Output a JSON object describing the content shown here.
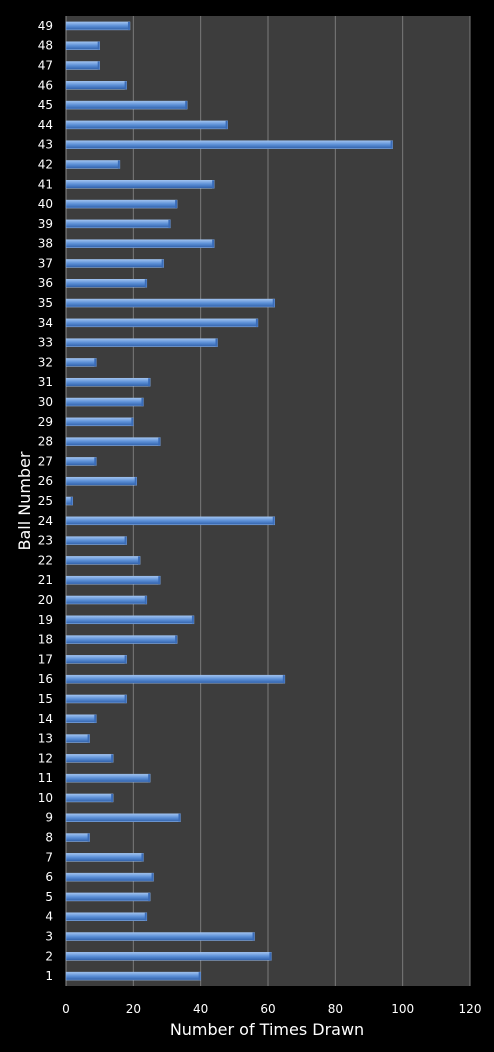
{
  "chart_data": {
    "type": "bar",
    "orientation": "horizontal",
    "xlabel": "Number of Times Drawn",
    "ylabel": "Ball Number",
    "xlim": [
      0,
      120
    ],
    "xticks": [
      "0",
      "20",
      "40",
      "60",
      "80",
      "100",
      "120"
    ],
    "grid": true,
    "legend": "none",
    "categories": [
      "1",
      "2",
      "3",
      "4",
      "5",
      "6",
      "7",
      "8",
      "9",
      "10",
      "11",
      "12",
      "13",
      "14",
      "15",
      "16",
      "17",
      "18",
      "19",
      "20",
      "21",
      "22",
      "23",
      "24",
      "25",
      "26",
      "27",
      "28",
      "29",
      "30",
      "31",
      "32",
      "33",
      "34",
      "35",
      "36",
      "37",
      "38",
      "39",
      "40",
      "41",
      "42",
      "43",
      "44",
      "45",
      "46",
      "47",
      "48",
      "49"
    ],
    "values": [
      40,
      61,
      56,
      24,
      25,
      26,
      23,
      7,
      34,
      14,
      25,
      14,
      7,
      9,
      18,
      65,
      18,
      33,
      38,
      24,
      28,
      22,
      18,
      62,
      2,
      21,
      9,
      28,
      20,
      23,
      25,
      9,
      45,
      57,
      62,
      24,
      29,
      44,
      31,
      33,
      44,
      16,
      97,
      48,
      36,
      18,
      10,
      10,
      19
    ],
    "colors": {
      "bar": "#5b8fd6",
      "plot_bg": "#3d3d3d",
      "grid": "#7a7a7a",
      "page_bg": "#000000",
      "text": "#ffffff"
    }
  }
}
